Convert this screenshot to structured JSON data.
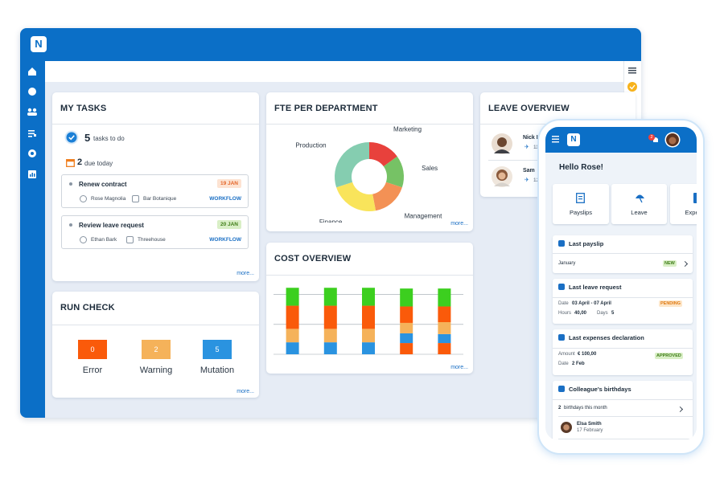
{
  "app": {
    "logo": "N"
  },
  "tasks": {
    "title": "MY TASKS",
    "todo_count": 5,
    "todo_label": "tasks to do",
    "due_count": 2,
    "due_label": "due today",
    "items": [
      {
        "title": "Renew contract",
        "date": "19 JAN",
        "person": "Rose Magnolia",
        "location": "Bar Botanique",
        "tag": "WORKFLOW"
      },
      {
        "title": "Review leave request",
        "date": "20 JAN",
        "person": "Ethan Bark",
        "location": "Threehouse",
        "tag": "WORKFLOW"
      }
    ],
    "more": "more..."
  },
  "run_check": {
    "title": "RUN CHECK",
    "items": [
      {
        "value": 0,
        "label": "Error",
        "color": "#fa5a0a"
      },
      {
        "value": 2,
        "label": "Warning",
        "color": "#f5b25a"
      },
      {
        "value": 5,
        "label": "Mutation",
        "color": "#2a93e0"
      }
    ],
    "more": "more..."
  },
  "fte_more": "more...",
  "cost_more": "more...",
  "chart_data": [
    {
      "type": "pie",
      "donut": true,
      "title": "FTE PER DEPARTMENT",
      "categories": [
        "Marketing",
        "Sales",
        "Management",
        "Finance",
        "Production"
      ],
      "values": [
        15,
        15,
        17,
        23,
        30
      ],
      "colors": [
        "#e8413c",
        "#76c265",
        "#f39155",
        "#f9e45b",
        "#85cdb0"
      ]
    },
    {
      "type": "bar",
      "stacked": true,
      "title": "COST OVERVIEW",
      "categories": [
        null,
        null,
        null,
        null,
        null
      ],
      "series": [
        {
          "color": "#fa5a0a",
          "values": [
            0,
            0,
            0,
            15,
            15
          ]
        },
        {
          "color": "#2a93e0",
          "values": [
            16,
            16,
            16,
            13,
            12
          ]
        },
        {
          "color": "#f5b25a",
          "values": [
            18,
            18,
            18,
            14,
            16
          ]
        },
        {
          "color": "#fa5a0a",
          "values": [
            31,
            31,
            31,
            22,
            21
          ]
        },
        {
          "color": "#3ccf1f",
          "values": [
            24,
            24,
            24,
            24,
            24
          ]
        }
      ],
      "ylim": [
        0,
        100
      ],
      "yticks": [
        0,
        40,
        80
      ],
      "grid": true
    }
  ],
  "leave": {
    "title": "LEAVE OVERVIEW",
    "people": [
      {
        "name": "Nick L",
        "days": 11
      },
      {
        "name": "Sam",
        "days": 12
      }
    ]
  },
  "phone": {
    "logo": "N",
    "notifications": 2,
    "greeting": "Hello Rose!",
    "tiles": [
      "Payslips",
      "Leave",
      "Expenses"
    ],
    "payslip": {
      "title": "Last payslip",
      "month": "January",
      "badge": "NEW"
    },
    "leave": {
      "title": "Last leave request",
      "date_label": "Date",
      "date": "03 April - 07 April",
      "badge": "PENDING",
      "hours_label": "Hours",
      "hours": "40,00",
      "days_label": "Days",
      "days": 5
    },
    "expenses": {
      "title": "Last expenses declaration",
      "amount_label": "Amount",
      "amount": "€ 100,00",
      "badge": "APPROVED",
      "date_label": "Date",
      "date": "2 Feb"
    },
    "birthdays": {
      "title": "Colleague's birthdays",
      "count": 2,
      "count_label": "birthdays this month",
      "people": [
        {
          "name": "Elsa Smith",
          "date": "17 February"
        }
      ]
    }
  }
}
